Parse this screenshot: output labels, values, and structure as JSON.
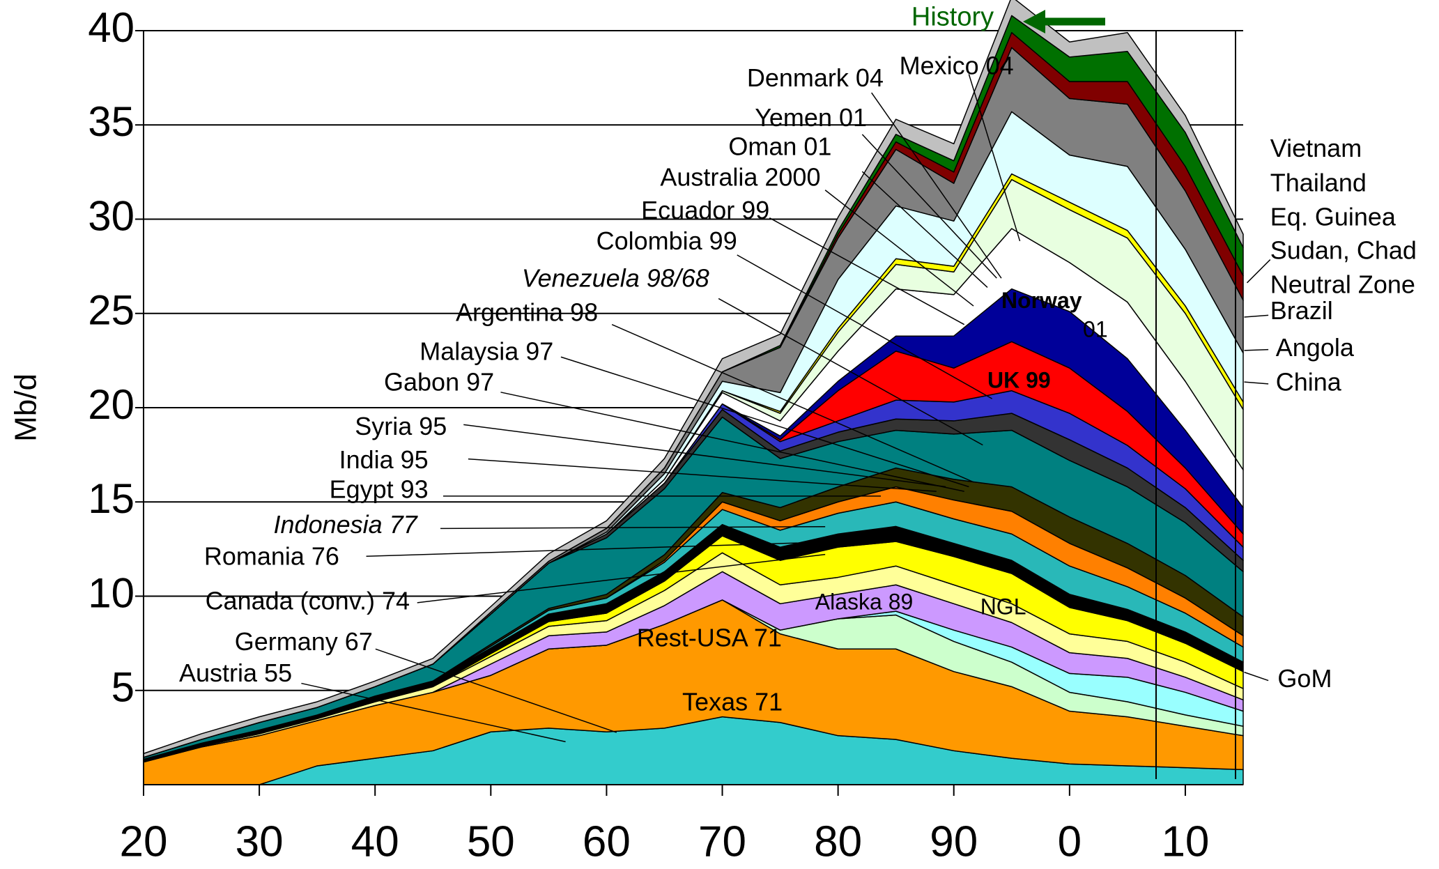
{
  "chart_data": {
    "type": "stacked-area",
    "y_label": "Mb/d",
    "xlim": [
      1920,
      2015
    ],
    "xticks": [
      {
        "value": 1920,
        "label": "20"
      },
      {
        "value": 1930,
        "label": "30"
      },
      {
        "value": 1940,
        "label": "40"
      },
      {
        "value": 1950,
        "label": "50"
      },
      {
        "value": 1960,
        "label": "60"
      },
      {
        "value": 1970,
        "label": "70"
      },
      {
        "value": 1980,
        "label": "80"
      },
      {
        "value": 1990,
        "label": "90"
      },
      {
        "value": 2000,
        "label": "0"
      },
      {
        "value": 2010,
        "label": "10"
      }
    ],
    "ylim": [
      0,
      40
    ],
    "yticks": [
      5,
      10,
      15,
      20,
      25,
      30,
      35,
      40
    ],
    "grid": true,
    "x": [
      1920,
      1925,
      1930,
      1935,
      1940,
      1945,
      1950,
      1955,
      1960,
      1965,
      1970,
      1975,
      1980,
      1985,
      1990,
      1995,
      2000,
      2005,
      2010,
      2015
    ],
    "series": [
      {
        "color": "#33cccc",
        "values": [
          0,
          0,
          0,
          1.0,
          1.4,
          1.8,
          2.8,
          3.0,
          2.8,
          3.0,
          3.6,
          3.3,
          2.6,
          2.4,
          1.8,
          1.4,
          1.1,
          1.0,
          0.9,
          0.8
        ]
      },
      {
        "color": "#ff9900",
        "values": [
          1.2,
          2.0,
          2.6,
          2.4,
          2.8,
          3.1,
          3.0,
          4.2,
          4.6,
          5.5,
          6.2,
          4.7,
          4.6,
          4.8,
          4.2,
          3.8,
          2.8,
          2.6,
          2.2,
          1.8
        ]
      },
      {
        "color": "#ccffcc",
        "values": [
          0,
          0,
          0,
          0,
          0,
          0,
          0,
          0,
          0,
          0,
          0,
          0.2,
          1.6,
          1.8,
          1.6,
          1.3,
          1.0,
          0.8,
          0.6,
          0.5
        ]
      },
      {
        "color": "#99ffff",
        "values": [
          0,
          0,
          0,
          0,
          0,
          0,
          0,
          0,
          0,
          0,
          0,
          0,
          0,
          0.2,
          0.6,
          0.8,
          1.0,
          1.3,
          1.2,
          0.8
        ]
      },
      {
        "color": "#cc99ff",
        "values": [
          0,
          0,
          0,
          0,
          0,
          0,
          0.6,
          0.7,
          0.7,
          1.0,
          1.5,
          1.4,
          1.3,
          1.4,
          1.4,
          1.3,
          1.1,
          1.0,
          0.8,
          0.6
        ]
      },
      {
        "color": "#ffff99",
        "values": [
          0.05,
          0.05,
          0.1,
          0.1,
          0.2,
          0.3,
          0.4,
          0.5,
          0.6,
          0.8,
          1.0,
          1.0,
          0.9,
          1.0,
          1.0,
          1.0,
          1.0,
          0.9,
          0.8,
          0.6
        ]
      },
      {
        "color": "#ffff00",
        "values": [
          0,
          0,
          0,
          0,
          0,
          0,
          0.15,
          0.25,
          0.4,
          0.5,
          0.9,
          1.3,
          1.6,
          1.3,
          1.5,
          1.6,
          1.4,
          1.1,
          1.0,
          0.9
        ]
      },
      {
        "color": "#000000",
        "values": [
          0.1,
          0.15,
          0.2,
          0.2,
          0.3,
          0.3,
          0.3,
          0.4,
          0.5,
          0.5,
          0.6,
          0.7,
          0.7,
          0.8,
          0.7,
          0.7,
          0.7,
          0.6,
          0.6,
          0.5
        ]
      },
      {
        "color": "#29b8b8",
        "values": [
          0,
          0,
          0,
          0,
          0,
          0,
          0.1,
          0.2,
          0.3,
          0.5,
          0.8,
          0.9,
          1.1,
          1.3,
          1.3,
          1.4,
          1.5,
          1.2,
          1.0,
          0.8
        ]
      },
      {
        "color": "#ff8000",
        "values": [
          0,
          0,
          0,
          0,
          0,
          0,
          0,
          0,
          0,
          0.1,
          0.4,
          0.5,
          0.6,
          0.8,
          1.0,
          1.2,
          1.2,
          1.0,
          0.8,
          0.6
        ]
      },
      {
        "color": "#333300",
        "values": [
          0,
          0,
          0,
          0,
          0,
          0,
          0.1,
          0.1,
          0.2,
          0.3,
          0.5,
          0.7,
          0.8,
          1.0,
          1.1,
          1.3,
          1.4,
          1.3,
          1.2,
          1.0
        ]
      },
      {
        "color": "#008080",
        "values": [
          0.1,
          0.2,
          0.4,
          0.4,
          0.5,
          0.9,
          1.6,
          2.4,
          3.0,
          3.5,
          4.0,
          2.6,
          2.4,
          2.0,
          2.4,
          3.0,
          3.0,
          3.0,
          2.8,
          2.4
        ]
      },
      {
        "color": "#333333",
        "values": [
          0,
          0,
          0,
          0,
          0,
          0,
          0,
          0,
          0.2,
          0.3,
          0.4,
          0.4,
          0.5,
          0.6,
          0.7,
          0.9,
          1.1,
          1.0,
          0.8,
          0.6
        ]
      },
      {
        "color": "#3333cc",
        "values": [
          0,
          0,
          0,
          0,
          0,
          0,
          0,
          0,
          0,
          0,
          0.3,
          0.5,
          0.6,
          1.0,
          1.0,
          1.2,
          1.4,
          1.2,
          1.0,
          0.7
        ]
      },
      {
        "color": "#ff0000",
        "values": [
          0,
          0,
          0,
          0,
          0,
          0,
          0,
          0,
          0,
          0,
          0,
          0.1,
          1.6,
          2.6,
          1.8,
          2.6,
          2.4,
          1.8,
          1.1,
          0.7
        ]
      },
      {
        "color": "#000099",
        "values": [
          0,
          0,
          0,
          0,
          0,
          0,
          0,
          0,
          0,
          0,
          0,
          0.2,
          0.5,
          0.8,
          1.7,
          2.8,
          3.0,
          2.8,
          2.0,
          1.4
        ]
      },
      {
        "color": "#ffffff",
        "values": [
          0,
          0,
          0,
          0,
          0,
          0,
          0,
          0,
          0,
          0.2,
          0.6,
          0.8,
          1.6,
          2.5,
          2.2,
          3.2,
          2.6,
          3.0,
          2.6,
          2.0
        ]
      },
      {
        "color": "#e8ffe0",
        "values": [
          0,
          0,
          0,
          0,
          0,
          0,
          0,
          0,
          0,
          0,
          0.1,
          0.4,
          1.0,
          1.3,
          1.2,
          2.6,
          2.8,
          3.4,
          3.6,
          3.2
        ]
      },
      {
        "color": "#ffff00",
        "values": [
          0,
          0,
          0,
          0,
          0,
          0,
          0,
          0,
          0,
          0,
          0,
          0.1,
          0.2,
          0.3,
          0.3,
          0.3,
          0.4,
          0.4,
          0.4,
          0.4
        ]
      },
      {
        "color": "#ddffff",
        "values": [
          0,
          0,
          0,
          0,
          0,
          0,
          0,
          0,
          0.1,
          0.3,
          0.5,
          1.0,
          2.6,
          2.8,
          2.4,
          3.3,
          2.5,
          3.4,
          3.0,
          2.6
        ]
      },
      {
        "color": "#808080",
        "values": [
          0,
          0,
          0,
          0,
          0,
          0,
          0.1,
          0.1,
          0.2,
          0.3,
          0.5,
          2.4,
          2.2,
          3.0,
          2.0,
          3.4,
          3.0,
          3.3,
          3.1,
          2.8
        ]
      },
      {
        "color": "#800000",
        "values": [
          0,
          0,
          0,
          0,
          0,
          0,
          0,
          0,
          0,
          0,
          0,
          0,
          0.2,
          0.4,
          0.6,
          0.8,
          0.9,
          1.2,
          1.3,
          1.3
        ]
      },
      {
        "color": "#007000",
        "values": [
          0,
          0,
          0,
          0,
          0,
          0,
          0,
          0,
          0,
          0,
          0,
          0.1,
          0.2,
          0.4,
          0.6,
          0.9,
          1.3,
          1.6,
          1.8,
          1.5
        ]
      },
      {
        "color": "#c0c0c0",
        "values": [
          0.2,
          0.3,
          0.3,
          0.3,
          0.3,
          0.3,
          0.3,
          0.4,
          0.4,
          0.5,
          0.7,
          0.6,
          0.7,
          0.8,
          0.9,
          1.0,
          0.8,
          1.0,
          0.9,
          0.7
        ]
      }
    ],
    "annotations": [
      "History",
      "Denmark 04",
      "Mexico 04",
      "Yemen 01",
      "Oman 01",
      "Australia 2000",
      "Ecuador 99",
      "Colombia 99",
      "Venezuela  98/68",
      "Argentina 98",
      "Malaysia 97",
      "Gabon 97",
      "Syria 95",
      "India 95",
      "Egypt 93",
      "Indonesia 77",
      "Romania 76",
      "Canada (conv.) 74",
      "Germany 67",
      "Austria 55",
      "Texas 71",
      "Rest-USA 71",
      "Alaska 89",
      "NGL",
      "Norway",
      "01",
      "UK 99",
      "Vietnam",
      "Thailand",
      "Eq. Guinea",
      "Sudan, Chad",
      "Neutral Zone",
      "Brazil",
      "Angola",
      "China",
      "GoM"
    ]
  }
}
